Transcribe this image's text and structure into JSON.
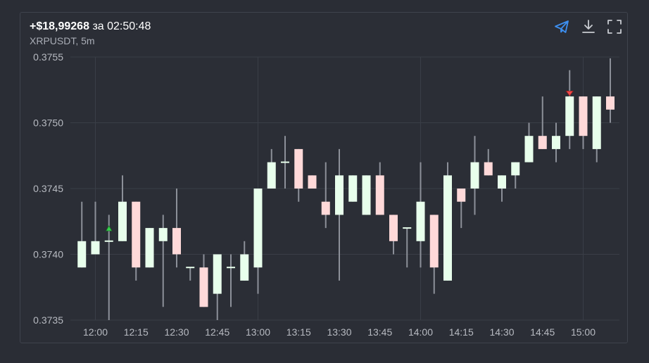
{
  "header": {
    "profit": "+$18,99268",
    "duration_prefix": "за",
    "duration": "02:50:48",
    "subtitle": "XRPUSDT, 5m"
  },
  "toolbar": {
    "icons": [
      "send-icon",
      "download-icon",
      "fullscreen-icon"
    ],
    "send_color": "#3d8ff0",
    "icon_color": "#c9ccd2"
  },
  "colors": {
    "bull_fill": "#e8ffec",
    "bear_fill": "#ffd9d9",
    "wick": "#8c9099",
    "grid": "#3a3e47",
    "buy_marker": "#35d24b",
    "sell_marker": "#f04a4a"
  },
  "chart_data": {
    "type": "candlestick",
    "x_tick_labels": [
      "12:00",
      "12:15",
      "12:30",
      "12:45",
      "13:00",
      "13:15",
      "13:30",
      "13:45",
      "14:00",
      "14:15",
      "14:30",
      "14:45",
      "15:00"
    ],
    "y_tick_labels": [
      "0.3755",
      "0.3750",
      "0.3745",
      "0.3740",
      "0.3735"
    ],
    "ylim": [
      0.3735,
      0.3755
    ],
    "grid": true,
    "candles": [
      {
        "time": "11:55",
        "open": 0.3739,
        "high": 0.3744,
        "low": 0.3739,
        "close": 0.3741
      },
      {
        "time": "12:00",
        "open": 0.374,
        "high": 0.3744,
        "low": 0.374,
        "close": 0.3741
      },
      {
        "time": "12:05",
        "open": 0.3741,
        "high": 0.3743,
        "low": 0.3735,
        "close": 0.3741
      },
      {
        "time": "12:10",
        "open": 0.3741,
        "high": 0.3746,
        "low": 0.3741,
        "close": 0.3744
      },
      {
        "time": "12:15",
        "open": 0.3744,
        "high": 0.3744,
        "low": 0.3738,
        "close": 0.3739
      },
      {
        "time": "12:20",
        "open": 0.3739,
        "high": 0.3742,
        "low": 0.3739,
        "close": 0.3742
      },
      {
        "time": "12:25",
        "open": 0.3741,
        "high": 0.3743,
        "low": 0.3736,
        "close": 0.3742
      },
      {
        "time": "12:30",
        "open": 0.3742,
        "high": 0.3745,
        "low": 0.3739,
        "close": 0.374
      },
      {
        "time": "12:35",
        "open": 0.3739,
        "high": 0.3739,
        "low": 0.3738,
        "close": 0.3739
      },
      {
        "time": "12:40",
        "open": 0.3739,
        "high": 0.374,
        "low": 0.3736,
        "close": 0.3736
      },
      {
        "time": "12:45",
        "open": 0.3737,
        "high": 0.374,
        "low": 0.3735,
        "close": 0.374
      },
      {
        "time": "12:50",
        "open": 0.3739,
        "high": 0.374,
        "low": 0.3736,
        "close": 0.3739
      },
      {
        "time": "12:55",
        "open": 0.3738,
        "high": 0.3741,
        "low": 0.3738,
        "close": 0.374
      },
      {
        "time": "13:00",
        "open": 0.3739,
        "high": 0.3745,
        "low": 0.3737,
        "close": 0.3745
      },
      {
        "time": "13:05",
        "open": 0.3745,
        "high": 0.3748,
        "low": 0.3745,
        "close": 0.3747
      },
      {
        "time": "13:10",
        "open": 0.3747,
        "high": 0.3749,
        "low": 0.3745,
        "close": 0.3747
      },
      {
        "time": "13:15",
        "open": 0.3748,
        "high": 0.3748,
        "low": 0.3744,
        "close": 0.3745
      },
      {
        "time": "13:20",
        "open": 0.3746,
        "high": 0.3746,
        "low": 0.3745,
        "close": 0.3745
      },
      {
        "time": "13:25",
        "open": 0.3744,
        "high": 0.3747,
        "low": 0.3742,
        "close": 0.3743
      },
      {
        "time": "13:30",
        "open": 0.3743,
        "high": 0.3748,
        "low": 0.3738,
        "close": 0.3746
      },
      {
        "time": "13:35",
        "open": 0.3744,
        "high": 0.3746,
        "low": 0.3744,
        "close": 0.3746
      },
      {
        "time": "13:40",
        "open": 0.3743,
        "high": 0.3746,
        "low": 0.3743,
        "close": 0.3746
      },
      {
        "time": "13:45",
        "open": 0.3746,
        "high": 0.3747,
        "low": 0.3743,
        "close": 0.3743
      },
      {
        "time": "13:50",
        "open": 0.3743,
        "high": 0.3743,
        "low": 0.374,
        "close": 0.3741
      },
      {
        "time": "13:55",
        "open": 0.3742,
        "high": 0.3742,
        "low": 0.3739,
        "close": 0.3742
      },
      {
        "time": "14:00",
        "open": 0.3741,
        "high": 0.3747,
        "low": 0.3739,
        "close": 0.3744
      },
      {
        "time": "14:05",
        "open": 0.3743,
        "high": 0.3743,
        "low": 0.3737,
        "close": 0.3739
      },
      {
        "time": "14:10",
        "open": 0.3738,
        "high": 0.3747,
        "low": 0.3738,
        "close": 0.3746
      },
      {
        "time": "14:15",
        "open": 0.3745,
        "high": 0.3745,
        "low": 0.3742,
        "close": 0.3744
      },
      {
        "time": "14:20",
        "open": 0.3745,
        "high": 0.3749,
        "low": 0.3743,
        "close": 0.3747
      },
      {
        "time": "14:25",
        "open": 0.3747,
        "high": 0.3748,
        "low": 0.3746,
        "close": 0.3746
      },
      {
        "time": "14:30",
        "open": 0.3745,
        "high": 0.3746,
        "low": 0.3744,
        "close": 0.3746
      },
      {
        "time": "14:35",
        "open": 0.3746,
        "high": 0.3747,
        "low": 0.3745,
        "close": 0.3747
      },
      {
        "time": "14:40",
        "open": 0.3747,
        "high": 0.375,
        "low": 0.3747,
        "close": 0.3749
      },
      {
        "time": "14:45",
        "open": 0.3749,
        "high": 0.3752,
        "low": 0.3748,
        "close": 0.3748
      },
      {
        "time": "14:50",
        "open": 0.3748,
        "high": 0.375,
        "low": 0.3747,
        "close": 0.3749
      },
      {
        "time": "14:55",
        "open": 0.3749,
        "high": 0.3754,
        "low": 0.3748,
        "close": 0.3752
      },
      {
        "time": "15:00",
        "open": 0.3752,
        "high": 0.3752,
        "low": 0.3748,
        "close": 0.3749
      },
      {
        "time": "15:05",
        "open": 0.3748,
        "high": 0.3752,
        "low": 0.3747,
        "close": 0.3752
      },
      {
        "time": "15:10",
        "open": 0.3752,
        "high": 0.37549,
        "low": 0.375,
        "close": 0.3751
      }
    ],
    "markers": [
      {
        "type": "buy",
        "time": "12:05",
        "price": 0.3742
      },
      {
        "type": "sell",
        "time": "14:55",
        "price": 0.37522
      }
    ]
  }
}
